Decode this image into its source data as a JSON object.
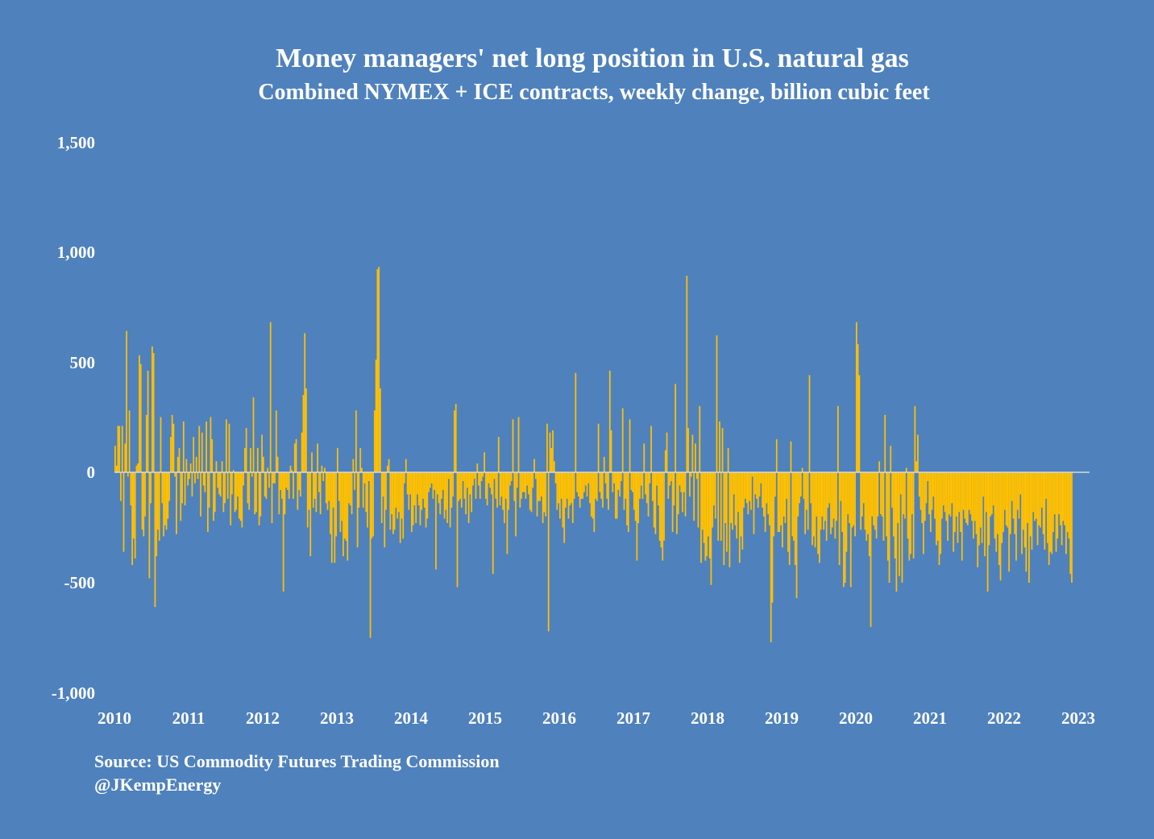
{
  "chart_data": {
    "type": "bar",
    "title": "Money managers' net long position in U.S. natural gas",
    "subtitle": "Combined NYMEX + ICE contracts, weekly change, billion cubic feet",
    "xlabel": "",
    "ylabel": "",
    "ylim": [
      -1000,
      1500
    ],
    "xlim": [
      2010,
      2023
    ],
    "yticks": [
      "1,500",
      "1,000",
      "500",
      "0",
      "-500",
      "-1,000"
    ],
    "ytick_values": [
      1500,
      1000,
      500,
      0,
      -500,
      -1000
    ],
    "xticks": [
      "2010",
      "2011",
      "2012",
      "2013",
      "2014",
      "2015",
      "2016",
      "2017",
      "2018",
      "2019",
      "2020",
      "2021",
      "2022",
      "2023"
    ],
    "grid": false,
    "bar_color": "#ffc000",
    "zero_line_color": "#d9d9d9",
    "background": "#4f81bd",
    "series": [
      {
        "name": "Weekly change (bcf)",
        "start_year": 2010.0,
        "step_years": 0.01923,
        "values": [
          120,
          30,
          210,
          210,
          -130,
          210,
          -360,
          130,
          640,
          -20,
          280,
          -150,
          -420,
          -300,
          -390,
          30,
          40,
          530,
          490,
          -260,
          -290,
          -200,
          260,
          460,
          -480,
          -140,
          570,
          540,
          -610,
          -380,
          -260,
          -310,
          250,
          -140,
          -290,
          -240,
          -260,
          -210,
          -130,
          160,
          260,
          220,
          -20,
          -280,
          70,
          110,
          -220,
          -140,
          230,
          -150,
          60,
          -60,
          -30,
          40,
          -110,
          160,
          -50,
          70,
          -30,
          210,
          -200,
          180,
          -60,
          -90,
          230,
          -270,
          -160,
          250,
          150,
          -220,
          -180,
          50,
          -70,
          -100,
          -110,
          50,
          -180,
          -140,
          240,
          -120,
          220,
          -240,
          -100,
          10,
          -180,
          -170,
          -110,
          -210,
          -220,
          -250,
          -60,
          110,
          200,
          -140,
          -170,
          110,
          -20,
          340,
          -190,
          -180,
          110,
          -240,
          -200,
          170,
          70,
          -110,
          -120,
          20,
          -70,
          680,
          -230,
          -50,
          -50,
          280,
          70,
          -190,
          -80,
          -120,
          -540,
          -190,
          -70,
          -80,
          -120,
          30,
          10,
          -120,
          130,
          150,
          -170,
          -80,
          -110,
          180,
          350,
          630,
          380,
          -250,
          -170,
          -380,
          90,
          -160,
          -120,
          -180,
          130,
          -90,
          -190,
          30,
          -40,
          20,
          -140,
          -170,
          -130,
          -280,
          -410,
          -160,
          -410,
          -290,
          110,
          -130,
          -270,
          -220,
          -380,
          -300,
          -310,
          -400,
          -140,
          -150,
          -190,
          60,
          -80,
          280,
          -340,
          -160,
          110,
          20,
          -160,
          -50,
          -180,
          -250,
          -40,
          -750,
          -300,
          -290,
          280,
          510,
          920,
          930,
          380,
          -230,
          -110,
          -340,
          -170,
          30,
          60,
          -260,
          -190,
          -280,
          -260,
          -160,
          -210,
          -180,
          -320,
          -210,
          -300,
          -50,
          60,
          -100,
          -170,
          -100,
          -270,
          -240,
          -150,
          -230,
          -100,
          -150,
          -240,
          -170,
          -120,
          -160,
          -250,
          -210,
          -90,
          -70,
          -50,
          -120,
          -80,
          -440,
          -100,
          -140,
          -190,
          -120,
          -80,
          -210,
          -170,
          -230,
          -30,
          -250,
          -160,
          -110,
          280,
          310,
          -520,
          -130,
          -120,
          -160,
          -40,
          -120,
          -190,
          -70,
          -230,
          -100,
          -180,
          -60,
          -30,
          -120,
          40,
          -60,
          -120,
          -40,
          -20,
          90,
          -120,
          -150,
          -50,
          -70,
          -100,
          -460,
          -30,
          -120,
          -160,
          160,
          -150,
          -110,
          -170,
          -230,
          -120,
          -370,
          -170,
          -60,
          -40,
          240,
          -130,
          -290,
          -70,
          250,
          -160,
          -120,
          -90,
          -90,
          -120,
          -60,
          -100,
          -170,
          -180,
          -70,
          60,
          -30,
          -200,
          -130,
          -130,
          -110,
          -230,
          -180,
          -200,
          220,
          -720,
          180,
          110,
          190,
          50,
          -50,
          -170,
          -140,
          -210,
          -120,
          -250,
          -320,
          -160,
          -120,
          -210,
          -150,
          -140,
          -230,
          -120,
          450,
          -90,
          -110,
          -160,
          -120,
          -120,
          -90,
          -60,
          -110,
          -50,
          -140,
          -200,
          -210,
          -270,
          -120,
          -130,
          220,
          -90,
          -120,
          -160,
          70,
          -50,
          -120,
          -170,
          460,
          190,
          -90,
          -50,
          -210,
          -210,
          -80,
          -110,
          -40,
          290,
          -170,
          -120,
          -240,
          -270,
          240,
          -80,
          -90,
          -170,
          -220,
          -400,
          -230,
          -120,
          -60,
          -120,
          130,
          -100,
          -140,
          -200,
          -50,
          210,
          -130,
          -250,
          -280,
          -60,
          -150,
          -310,
          -340,
          -400,
          -310,
          100,
          180,
          -120,
          -60,
          -40,
          -270,
          -150,
          400,
          -280,
          -190,
          -60,
          -90,
          -180,
          -90,
          -200,
          890,
          200,
          -110,
          -20,
          170,
          -220,
          130,
          -30,
          -250,
          300,
          -410,
          -260,
          -320,
          -400,
          -380,
          -290,
          -390,
          -510,
          -250,
          -150,
          -210,
          620,
          -310,
          230,
          -310,
          200,
          -420,
          -230,
          -360,
          110,
          -430,
          -230,
          -260,
          -100,
          -240,
          -300,
          -180,
          -410,
          -290,
          -350,
          -160,
          -120,
          -140,
          -190,
          -130,
          -170,
          -20,
          -280,
          -100,
          -120,
          -160,
          -110,
          -50,
          -160,
          -200,
          -270,
          -140,
          -190,
          -240,
          -770,
          -590,
          -290,
          -110,
          150,
          -270,
          -270,
          -240,
          -340,
          -200,
          -230,
          -120,
          -360,
          -420,
          140,
          -290,
          -310,
          -420,
          -570,
          -200,
          -140,
          -110,
          20,
          -120,
          -280,
          -170,
          -260,
          440,
          -140,
          -330,
          -290,
          -340,
          -200,
          -370,
          -410,
          -260,
          -200,
          -260,
          -220,
          -310,
          -160,
          -140,
          -280,
          -250,
          -210,
          -300,
          -220,
          300,
          -420,
          -130,
          -270,
          -520,
          -500,
          -360,
          -190,
          -230,
          -520,
          -250,
          -240,
          -290,
          680,
          580,
          440,
          -260,
          -200,
          -140,
          -260,
          -310,
          -280,
          -380,
          -700,
          -200,
          -240,
          -260,
          -300,
          -200,
          50,
          -190,
          -200,
          -310,
          260,
          -290,
          -400,
          -500,
          120,
          -160,
          -290,
          -390,
          -540,
          -230,
          -470,
          -100,
          -500,
          -190,
          -210,
          20,
          -300,
          -400,
          -370,
          -190,
          -390,
          300,
          50,
          170,
          -110,
          -170,
          -230,
          -370,
          -220,
          -140,
          -40,
          -190,
          -270,
          -170,
          -110,
          -210,
          -330,
          -310,
          -420,
          -370,
          -210,
          -150,
          -180,
          -220,
          -310,
          -190,
          -200,
          -140,
          -360,
          -270,
          -200,
          -320,
          -180,
          -270,
          -400,
          -170,
          -210,
          -230,
          -240,
          -170,
          -190,
          -220,
          -300,
          -220,
          -280,
          -430,
          -330,
          -250,
          -320,
          -110,
          -380,
          -180,
          -540,
          -330,
          -200,
          -190,
          -150,
          -300,
          -360,
          -280,
          -420,
          -490,
          -320,
          -270,
          -170,
          -240,
          -250,
          -450,
          -280,
          -130,
          -210,
          -280,
          -400,
          -170,
          -210,
          -100,
          -370,
          -260,
          -340,
          -450,
          -230,
          -500,
          -290,
          -350,
          -180,
          -220,
          -210,
          -330,
          -240,
          -250,
          -160,
          -280,
          -350,
          -120,
          -320,
          -420,
          -360,
          -370,
          -270,
          -190,
          -360,
          -300,
          -190,
          -240,
          -330,
          -220,
          -240,
          -370,
          -270,
          -300,
          -460,
          -500,
          -430,
          -200,
          -230,
          -170,
          -270,
          -290,
          -230,
          -180,
          -140,
          -200,
          -330,
          -210,
          -200,
          -180,
          -120,
          -240,
          -250,
          -310,
          -200,
          -280,
          -200,
          -180,
          -270,
          -170,
          -260,
          -330,
          -250,
          -210,
          -190,
          -150,
          -230,
          -310,
          -470,
          -480
        ]
      }
    ]
  },
  "source": "Source: US Commodity Futures Trading Commission",
  "handle": "@JKempEnergy"
}
